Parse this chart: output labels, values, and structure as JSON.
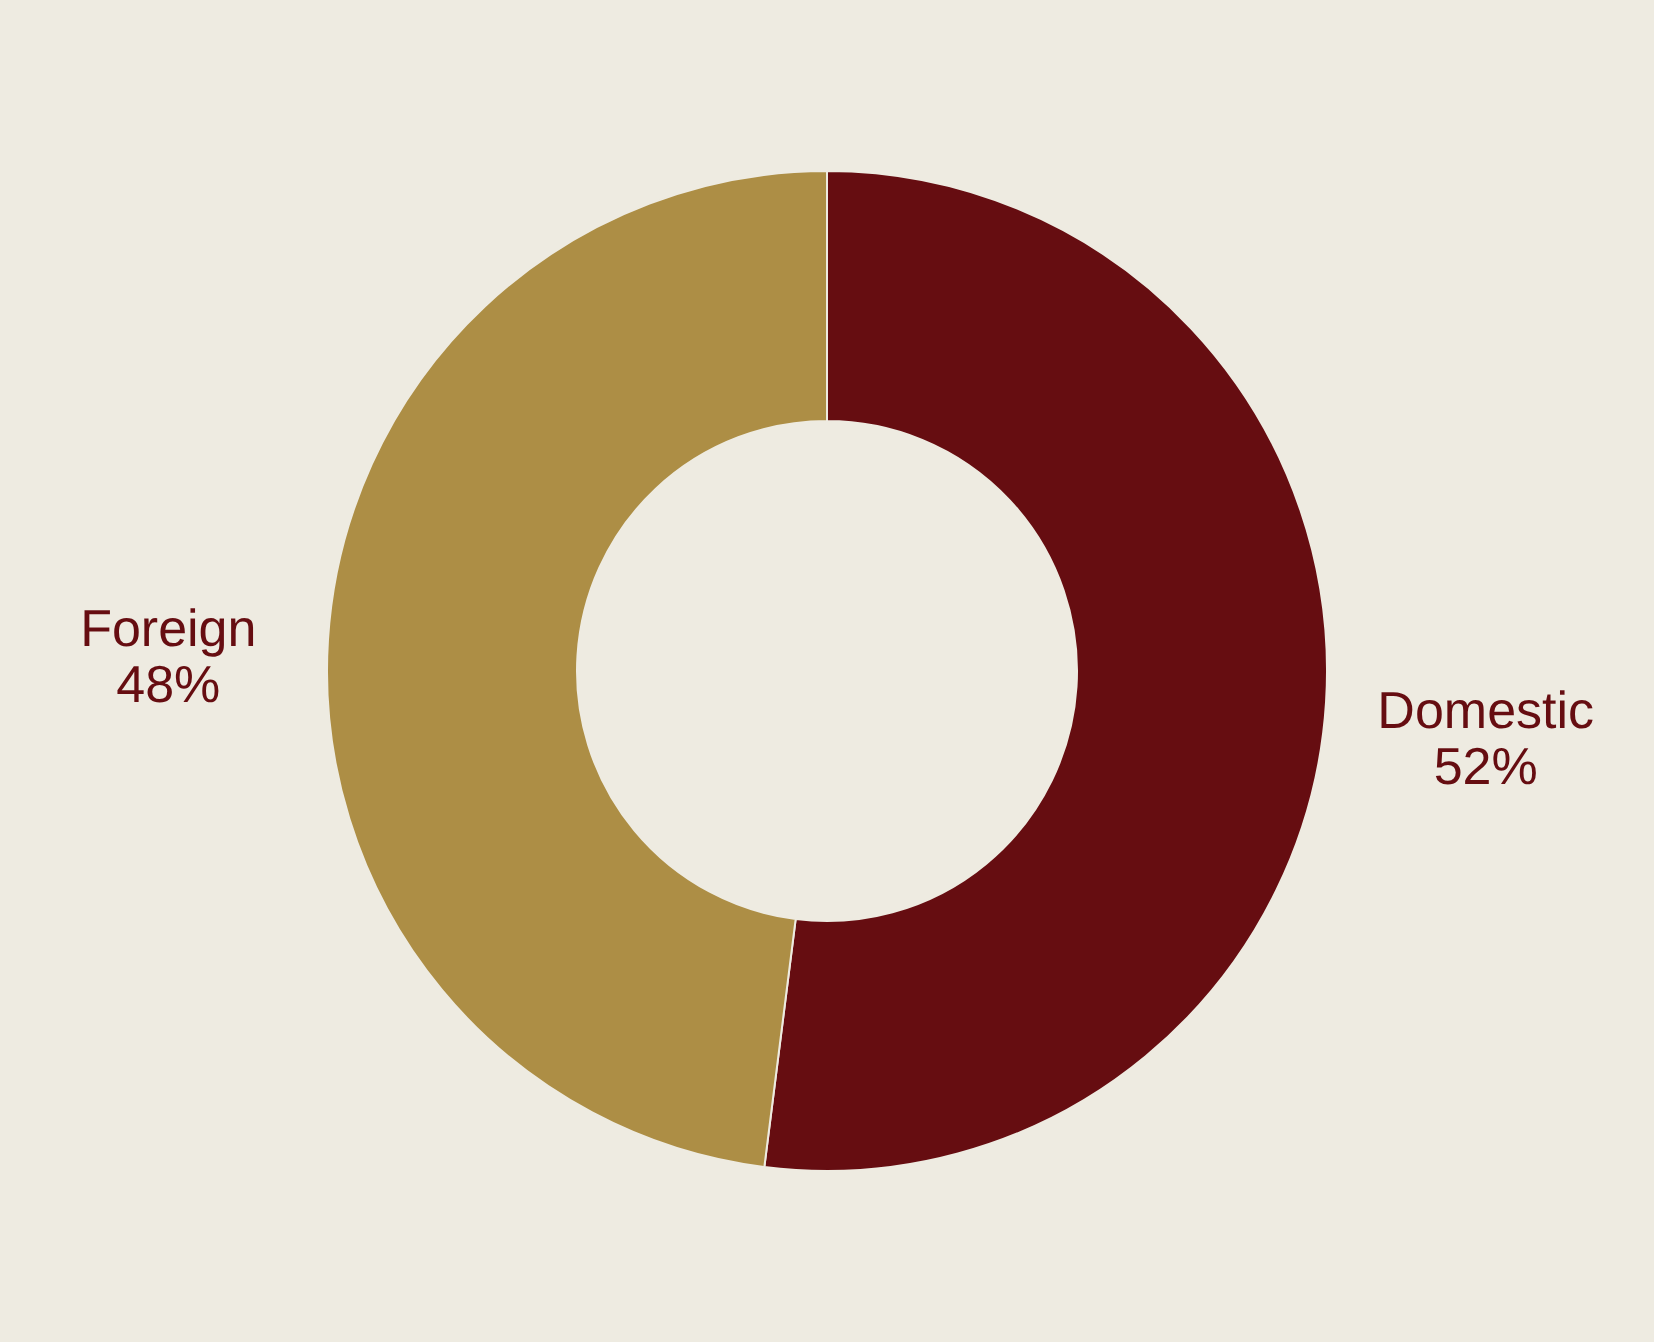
{
  "chart_data": {
    "type": "donut",
    "categories": [
      "Domestic",
      "Foreign"
    ],
    "values": [
      52,
      48
    ],
    "colors": [
      "#660d11",
      "#ad8e45"
    ],
    "value_labels": [
      "52%",
      "48%"
    ]
  }
}
